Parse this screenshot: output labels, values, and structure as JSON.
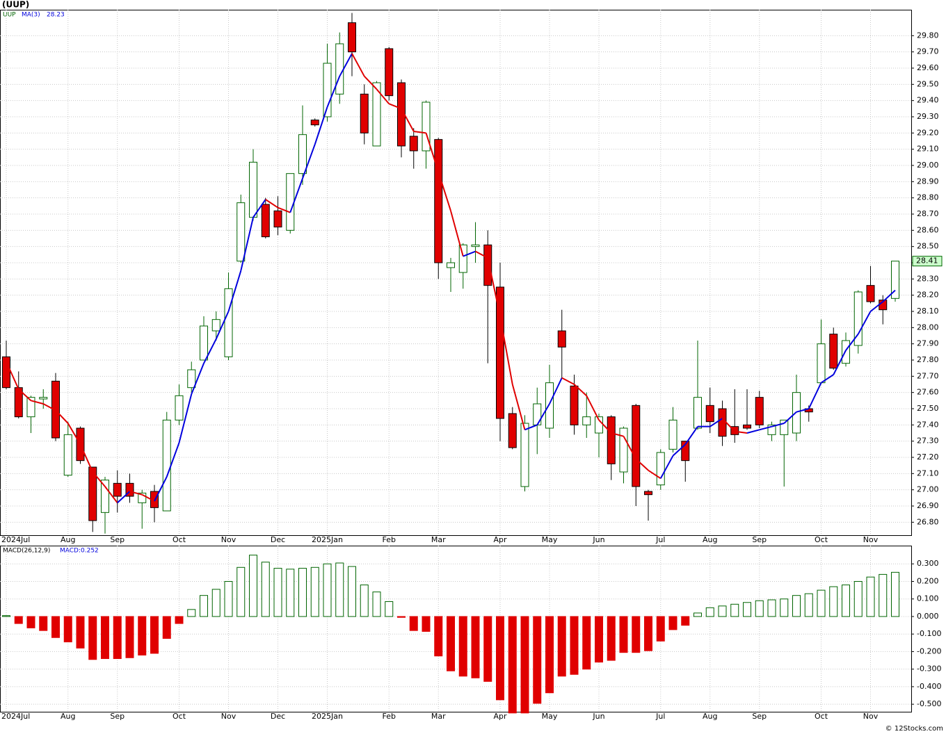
{
  "chart_data": [
    {
      "type": "candlestick",
      "title": "(UUP)",
      "legend": [
        "UUP",
        "MA(3)"
      ],
      "ma_last": 28.23,
      "categories": [
        "2024Jul",
        null,
        null,
        null,
        null,
        "Aug",
        null,
        null,
        null,
        "Sep",
        null,
        null,
        null,
        null,
        "Oct",
        null,
        null,
        null,
        "Nov",
        null,
        null,
        null,
        "Dec",
        null,
        null,
        null,
        "2025Jan",
        null,
        null,
        null,
        null,
        "Feb",
        null,
        null,
        null,
        "Mar",
        null,
        null,
        null,
        null,
        "Apr",
        null,
        null,
        null,
        "May",
        null,
        null,
        null,
        "Jun",
        null,
        null,
        null,
        null,
        "Jul",
        null,
        null,
        null,
        "Aug",
        null,
        null,
        null,
        "Sep",
        null,
        null,
        null,
        null,
        "Oct",
        null,
        null,
        null,
        "Nov",
        null,
        null
      ],
      "open": [
        27.82,
        27.63,
        27.45,
        27.56,
        27.67,
        27.09,
        27.38,
        27.14,
        26.86,
        27.04,
        27.04,
        26.92,
        26.99,
        26.87,
        27.43,
        27.63,
        27.8,
        27.98,
        27.82,
        28.41,
        28.68,
        28.76,
        28.72,
        28.6,
        28.95,
        29.28,
        29.3,
        29.44,
        29.88,
        29.44,
        29.12,
        29.72,
        29.51,
        29.18,
        29.09,
        29.16,
        28.37,
        28.34,
        28.5,
        28.51,
        28.25,
        27.47,
        27.02,
        27.4,
        27.38,
        27.98,
        27.64,
        27.4,
        27.35,
        27.45,
        27.11,
        27.52,
        26.99,
        27.03,
        27.25,
        27.3,
        27.38,
        27.52,
        27.5,
        27.39,
        27.4,
        27.57,
        27.34,
        27.34,
        27.35,
        27.5,
        27.66,
        27.96,
        27.78,
        27.89,
        28.26,
        28.17,
        28.18
      ],
      "high": [
        27.92,
        27.73,
        27.58,
        27.62,
        27.72,
        27.42,
        27.39,
        27.14,
        27.08,
        27.12,
        27.1,
        27.0,
        27.03,
        27.48,
        27.65,
        27.79,
        28.07,
        28.1,
        28.34,
        28.82,
        29.1,
        28.8,
        28.81,
        28.95,
        29.37,
        29.29,
        29.75,
        29.82,
        29.94,
        29.5,
        29.52,
        29.73,
        29.53,
        29.23,
        29.4,
        29.17,
        28.43,
        28.52,
        28.65,
        28.6,
        28.4,
        27.51,
        27.46,
        27.63,
        27.77,
        28.11,
        27.71,
        27.6,
        27.47,
        27.46,
        27.39,
        27.53,
        27.0,
        27.25,
        27.51,
        27.3,
        27.92,
        27.63,
        27.55,
        27.62,
        27.62,
        27.61,
        27.42,
        27.43,
        27.71,
        27.52,
        28.05,
        28.0,
        27.97,
        28.23,
        28.38,
        28.2,
        28.41
      ],
      "low": [
        27.62,
        27.44,
        27.35,
        27.5,
        27.3,
        27.08,
        27.16,
        26.74,
        26.73,
        26.86,
        26.92,
        26.76,
        26.8,
        26.87,
        27.4,
        27.6,
        27.8,
        27.92,
        27.8,
        28.4,
        28.66,
        28.55,
        28.57,
        28.58,
        28.88,
        29.24,
        29.27,
        29.38,
        29.55,
        29.13,
        29.12,
        29.4,
        29.05,
        28.98,
        28.98,
        28.3,
        28.22,
        28.24,
        28.4,
        27.78,
        27.3,
        27.25,
        26.99,
        27.22,
        27.32,
        27.69,
        27.34,
        27.32,
        27.2,
        27.06,
        27.04,
        26.9,
        26.81,
        27.0,
        27.23,
        27.05,
        27.37,
        27.35,
        27.27,
        27.29,
        27.37,
        27.38,
        27.3,
        27.02,
        27.3,
        27.42,
        27.65,
        27.74,
        27.76,
        27.84,
        28.15,
        28.02,
        28.16
      ],
      "close": [
        27.63,
        27.45,
        27.57,
        27.57,
        27.32,
        27.34,
        27.18,
        26.81,
        27.06,
        26.96,
        26.96,
        26.98,
        26.89,
        27.43,
        27.58,
        27.74,
        28.01,
        28.05,
        28.24,
        28.77,
        29.02,
        28.56,
        28.62,
        28.95,
        29.19,
        29.25,
        29.63,
        29.75,
        29.7,
        29.2,
        29.51,
        29.43,
        29.12,
        29.09,
        29.39,
        28.4,
        28.4,
        28.51,
        28.51,
        28.26,
        27.44,
        27.26,
        27.41,
        27.53,
        27.66,
        27.88,
        27.4,
        27.45,
        27.45,
        27.16,
        27.38,
        27.02,
        26.97,
        27.23,
        27.43,
        27.18,
        27.57,
        27.42,
        27.33,
        27.34,
        27.38,
        27.4,
        27.4,
        27.43,
        27.6,
        27.48,
        27.9,
        27.75,
        27.92,
        28.22,
        28.16,
        28.11,
        28.41
      ],
      "ma": [
        27.79,
        27.62,
        27.55,
        27.53,
        27.49,
        27.41,
        27.28,
        27.11,
        27.02,
        26.92,
        26.99,
        26.97,
        26.93,
        27.08,
        27.29,
        27.59,
        27.78,
        27.93,
        28.1,
        28.35,
        28.68,
        28.79,
        28.74,
        28.71,
        28.92,
        29.13,
        29.36,
        29.55,
        29.69,
        29.55,
        29.47,
        29.38,
        29.35,
        29.21,
        29.2,
        28.96,
        28.72,
        28.44,
        28.47,
        28.43,
        28.07,
        27.65,
        27.37,
        27.4,
        27.53,
        27.69,
        27.65,
        27.58,
        27.43,
        27.35,
        27.33,
        27.19,
        27.12,
        27.07,
        27.21,
        27.28,
        27.39,
        27.39,
        27.44,
        27.36,
        27.35,
        27.37,
        27.39,
        27.41,
        27.48,
        27.5,
        27.66,
        27.71,
        27.86,
        27.96,
        28.1,
        28.16,
        28.23
      ],
      "last_price": 28.41,
      "ylim": [
        26.72,
        29.96
      ],
      "yticks": [
        {
          "value": 26.8,
          "label": "26.80"
        },
        {
          "value": 26.9,
          "label": "26.90"
        },
        {
          "value": 27.0,
          "label": "27.00"
        },
        {
          "value": 27.1,
          "label": "27.10"
        },
        {
          "value": 27.2,
          "label": "27.20"
        },
        {
          "value": 27.3,
          "label": "27.30"
        },
        {
          "value": 27.4,
          "label": "27.40"
        },
        {
          "value": 27.5,
          "label": "27.50"
        },
        {
          "value": 27.6,
          "label": "27.60"
        },
        {
          "value": 27.7,
          "label": "27.70"
        },
        {
          "value": 27.8,
          "label": "27.80"
        },
        {
          "value": 27.9,
          "label": "27.90"
        },
        {
          "value": 28.0,
          "label": "28.00"
        },
        {
          "value": 28.1,
          "label": "28.10"
        },
        {
          "value": 28.2,
          "label": "28.20"
        },
        {
          "value": 28.3,
          "label": "28.30"
        },
        {
          "value": 28.4,
          "label": "28.40"
        },
        {
          "value": 28.5,
          "label": "28.50"
        },
        {
          "value": 28.6,
          "label": "28.60"
        },
        {
          "value": 28.7,
          "label": "28.70"
        },
        {
          "value": 28.8,
          "label": "28.80"
        },
        {
          "value": 28.9,
          "label": "28.90"
        },
        {
          "value": 29.0,
          "label": "29.00"
        },
        {
          "value": 29.1,
          "label": "29.10"
        },
        {
          "value": 29.2,
          "label": "29.20"
        },
        {
          "value": 29.3,
          "label": "29.30"
        },
        {
          "value": 29.4,
          "label": "29.40"
        },
        {
          "value": 29.5,
          "label": "29.50"
        },
        {
          "value": 29.6,
          "label": "29.60"
        },
        {
          "value": 29.7,
          "label": "29.70"
        },
        {
          "value": 29.8,
          "label": "29.80"
        }
      ],
      "grid": true,
      "colors": {
        "up": "#006400",
        "down": "#e00000",
        "ma_up": "#0000dd",
        "ma_down": "#e00000"
      }
    },
    {
      "type": "bar",
      "title": "MACD(26,12,9)",
      "value_label": "MACD:0.252",
      "categories": [
        "2024Jul",
        null,
        null,
        null,
        null,
        "Aug",
        null,
        null,
        null,
        "Sep",
        null,
        null,
        null,
        null,
        "Oct",
        null,
        null,
        null,
        "Nov",
        null,
        null,
        null,
        "Dec",
        null,
        null,
        null,
        "2025Jan",
        null,
        null,
        null,
        null,
        "Feb",
        null,
        null,
        null,
        "Mar",
        null,
        null,
        null,
        null,
        "Apr",
        null,
        null,
        null,
        "May",
        null,
        null,
        null,
        "Jun",
        null,
        null,
        null,
        null,
        "Jul",
        null,
        null,
        null,
        "Aug",
        null,
        null,
        null,
        "Sep",
        null,
        null,
        null,
        null,
        "Oct",
        null,
        null,
        null,
        "Nov",
        null,
        null
      ],
      "values": [
        0.005,
        -0.04,
        -0.065,
        -0.08,
        -0.12,
        -0.145,
        -0.18,
        -0.245,
        -0.24,
        -0.24,
        -0.235,
        -0.22,
        -0.21,
        -0.125,
        -0.04,
        0.04,
        0.12,
        0.155,
        0.2,
        0.28,
        0.35,
        0.31,
        0.275,
        0.27,
        0.275,
        0.28,
        0.3,
        0.305,
        0.285,
        0.18,
        0.14,
        0.085,
        -0.005,
        -0.08,
        -0.085,
        -0.225,
        -0.31,
        -0.34,
        -0.35,
        -0.37,
        -0.475,
        -0.55,
        -0.55,
        -0.495,
        -0.435,
        -0.34,
        -0.33,
        -0.3,
        -0.26,
        -0.25,
        -0.205,
        -0.205,
        -0.195,
        -0.14,
        -0.075,
        -0.05,
        0.02,
        0.05,
        0.06,
        0.07,
        0.08,
        0.09,
        0.095,
        0.1,
        0.12,
        0.13,
        0.15,
        0.17,
        0.18,
        0.2,
        0.225,
        0.24,
        0.252
      ],
      "ylim": [
        -0.543,
        0.404
      ],
      "yticks": [
        {
          "value": 0.3,
          "label": "0.300"
        },
        {
          "value": 0.2,
          "label": "0.200"
        },
        {
          "value": 0.1,
          "label": "0.100"
        },
        {
          "value": 0,
          "label": "0.000"
        },
        {
          "value": -0.1,
          "label": "-0.100"
        },
        {
          "value": -0.2,
          "label": "-0.200"
        },
        {
          "value": -0.3,
          "label": "-0.300"
        },
        {
          "value": -0.4,
          "label": "-0.400"
        },
        {
          "value": -0.5,
          "label": "-0.500"
        }
      ],
      "grid": true,
      "colors": {
        "up": "#006400",
        "down": "#e00000"
      }
    }
  ],
  "footer": "© 12Stocks.com"
}
